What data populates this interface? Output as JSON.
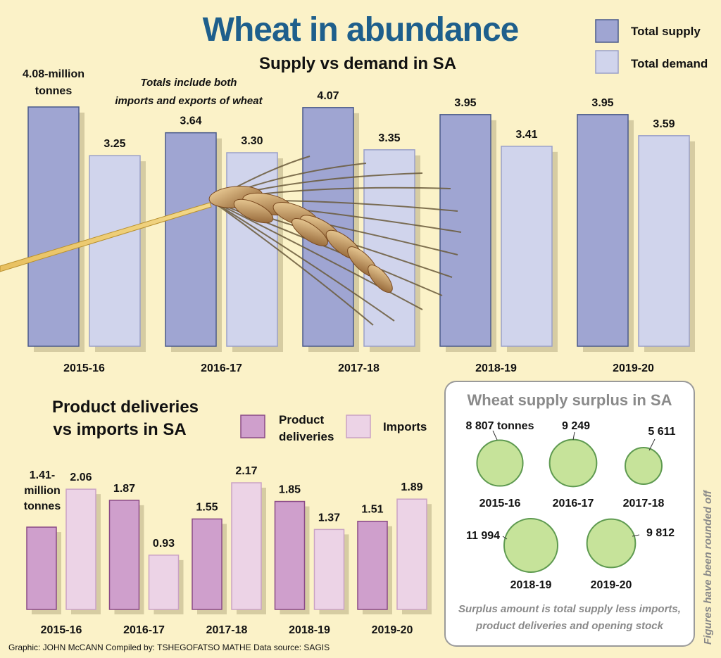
{
  "title": "Wheat in abundance",
  "top_chart": {
    "subtitle": "Supply vs demand in SA",
    "note_line1": "Totals include both",
    "note_line2": "imports and exports of wheat",
    "first_label_line1": "4.08-million",
    "first_label_line2": "tonnes",
    "legend": [
      "Total supply",
      "Total demand"
    ],
    "colors": {
      "supply": "#9fa5d2",
      "demand": "#d0d4ec",
      "supply_stroke": "#4a5a8a",
      "demand_stroke": "#9aa0c8"
    }
  },
  "bottom_chart": {
    "subtitle_line1": "Product deliveries",
    "subtitle_line2": "vs imports in SA",
    "first_label_line1": "1.41-",
    "first_label_line2": "million",
    "first_label_line3": "tonnes",
    "legend_deliveries_line1": "Product",
    "legend_deliveries_line2": "deliveries",
    "legend_imports": "Imports",
    "colors": {
      "deliveries": "#cf9fcc",
      "imports": "#ecd3e6",
      "deliveries_stroke": "#8a4a86",
      "imports_stroke": "#c9a2c4"
    }
  },
  "surplus_panel": {
    "title": "Wheat supply surplus in SA",
    "note_line1": "Surplus amount is total supply less imports,",
    "note_line2": "product deliveries and opening stock",
    "colors": {
      "circle": "#c6e39a",
      "circle_stroke": "#5e9a50"
    }
  },
  "side_note": "Figures have been rounded off",
  "credits": "Graphic: JOHN McCANN  Compiled by: TSHEGOFATSO MATHE  Data source: SAGIS",
  "chart_data": [
    {
      "type": "bar",
      "title": "Supply vs demand in SA",
      "categories": [
        "2015-16",
        "2016-17",
        "2017-18",
        "2018-19",
        "2019-20"
      ],
      "series": [
        {
          "name": "Total supply",
          "values": [
            4.08,
            3.64,
            4.07,
            3.95,
            3.95
          ],
          "labels": [
            "",
            "3.64",
            "4.07",
            "3.95",
            "3.95"
          ]
        },
        {
          "name": "Total demand",
          "values": [
            3.25,
            3.3,
            3.35,
            3.41,
            3.59
          ],
          "labels": [
            "3.25",
            "3.30",
            "3.35",
            "3.41",
            "3.59"
          ]
        }
      ],
      "ylim": [
        0,
        4.08
      ],
      "grid": false,
      "legend": "top-right"
    },
    {
      "type": "bar",
      "title": "Product deliveries vs imports in SA",
      "categories": [
        "2015-16",
        "2016-17",
        "2017-18",
        "2018-19",
        "2019-20"
      ],
      "series": [
        {
          "name": "Product deliveries",
          "values": [
            1.41,
            1.87,
            1.55,
            1.85,
            1.51
          ],
          "labels": [
            "",
            "1.87",
            "1.55",
            "1.85",
            "1.51"
          ]
        },
        {
          "name": "Imports",
          "values": [
            2.06,
            0.93,
            2.17,
            1.37,
            1.89
          ],
          "labels": [
            "2.06",
            "0.93",
            "2.17",
            "1.37",
            "1.89"
          ]
        }
      ],
      "ylim": [
        0,
        2.17
      ],
      "grid": false,
      "legend": "top"
    },
    {
      "type": "bubble",
      "title": "Wheat supply surplus in SA",
      "categories": [
        "2015-16",
        "2016-17",
        "2017-18",
        "2018-19",
        "2019-20"
      ],
      "values": [
        8807,
        9249,
        5611,
        11994,
        9812
      ],
      "labels": [
        "8 807 tonnes",
        "9 249",
        "5 611",
        "11 994",
        "9 812"
      ]
    }
  ]
}
